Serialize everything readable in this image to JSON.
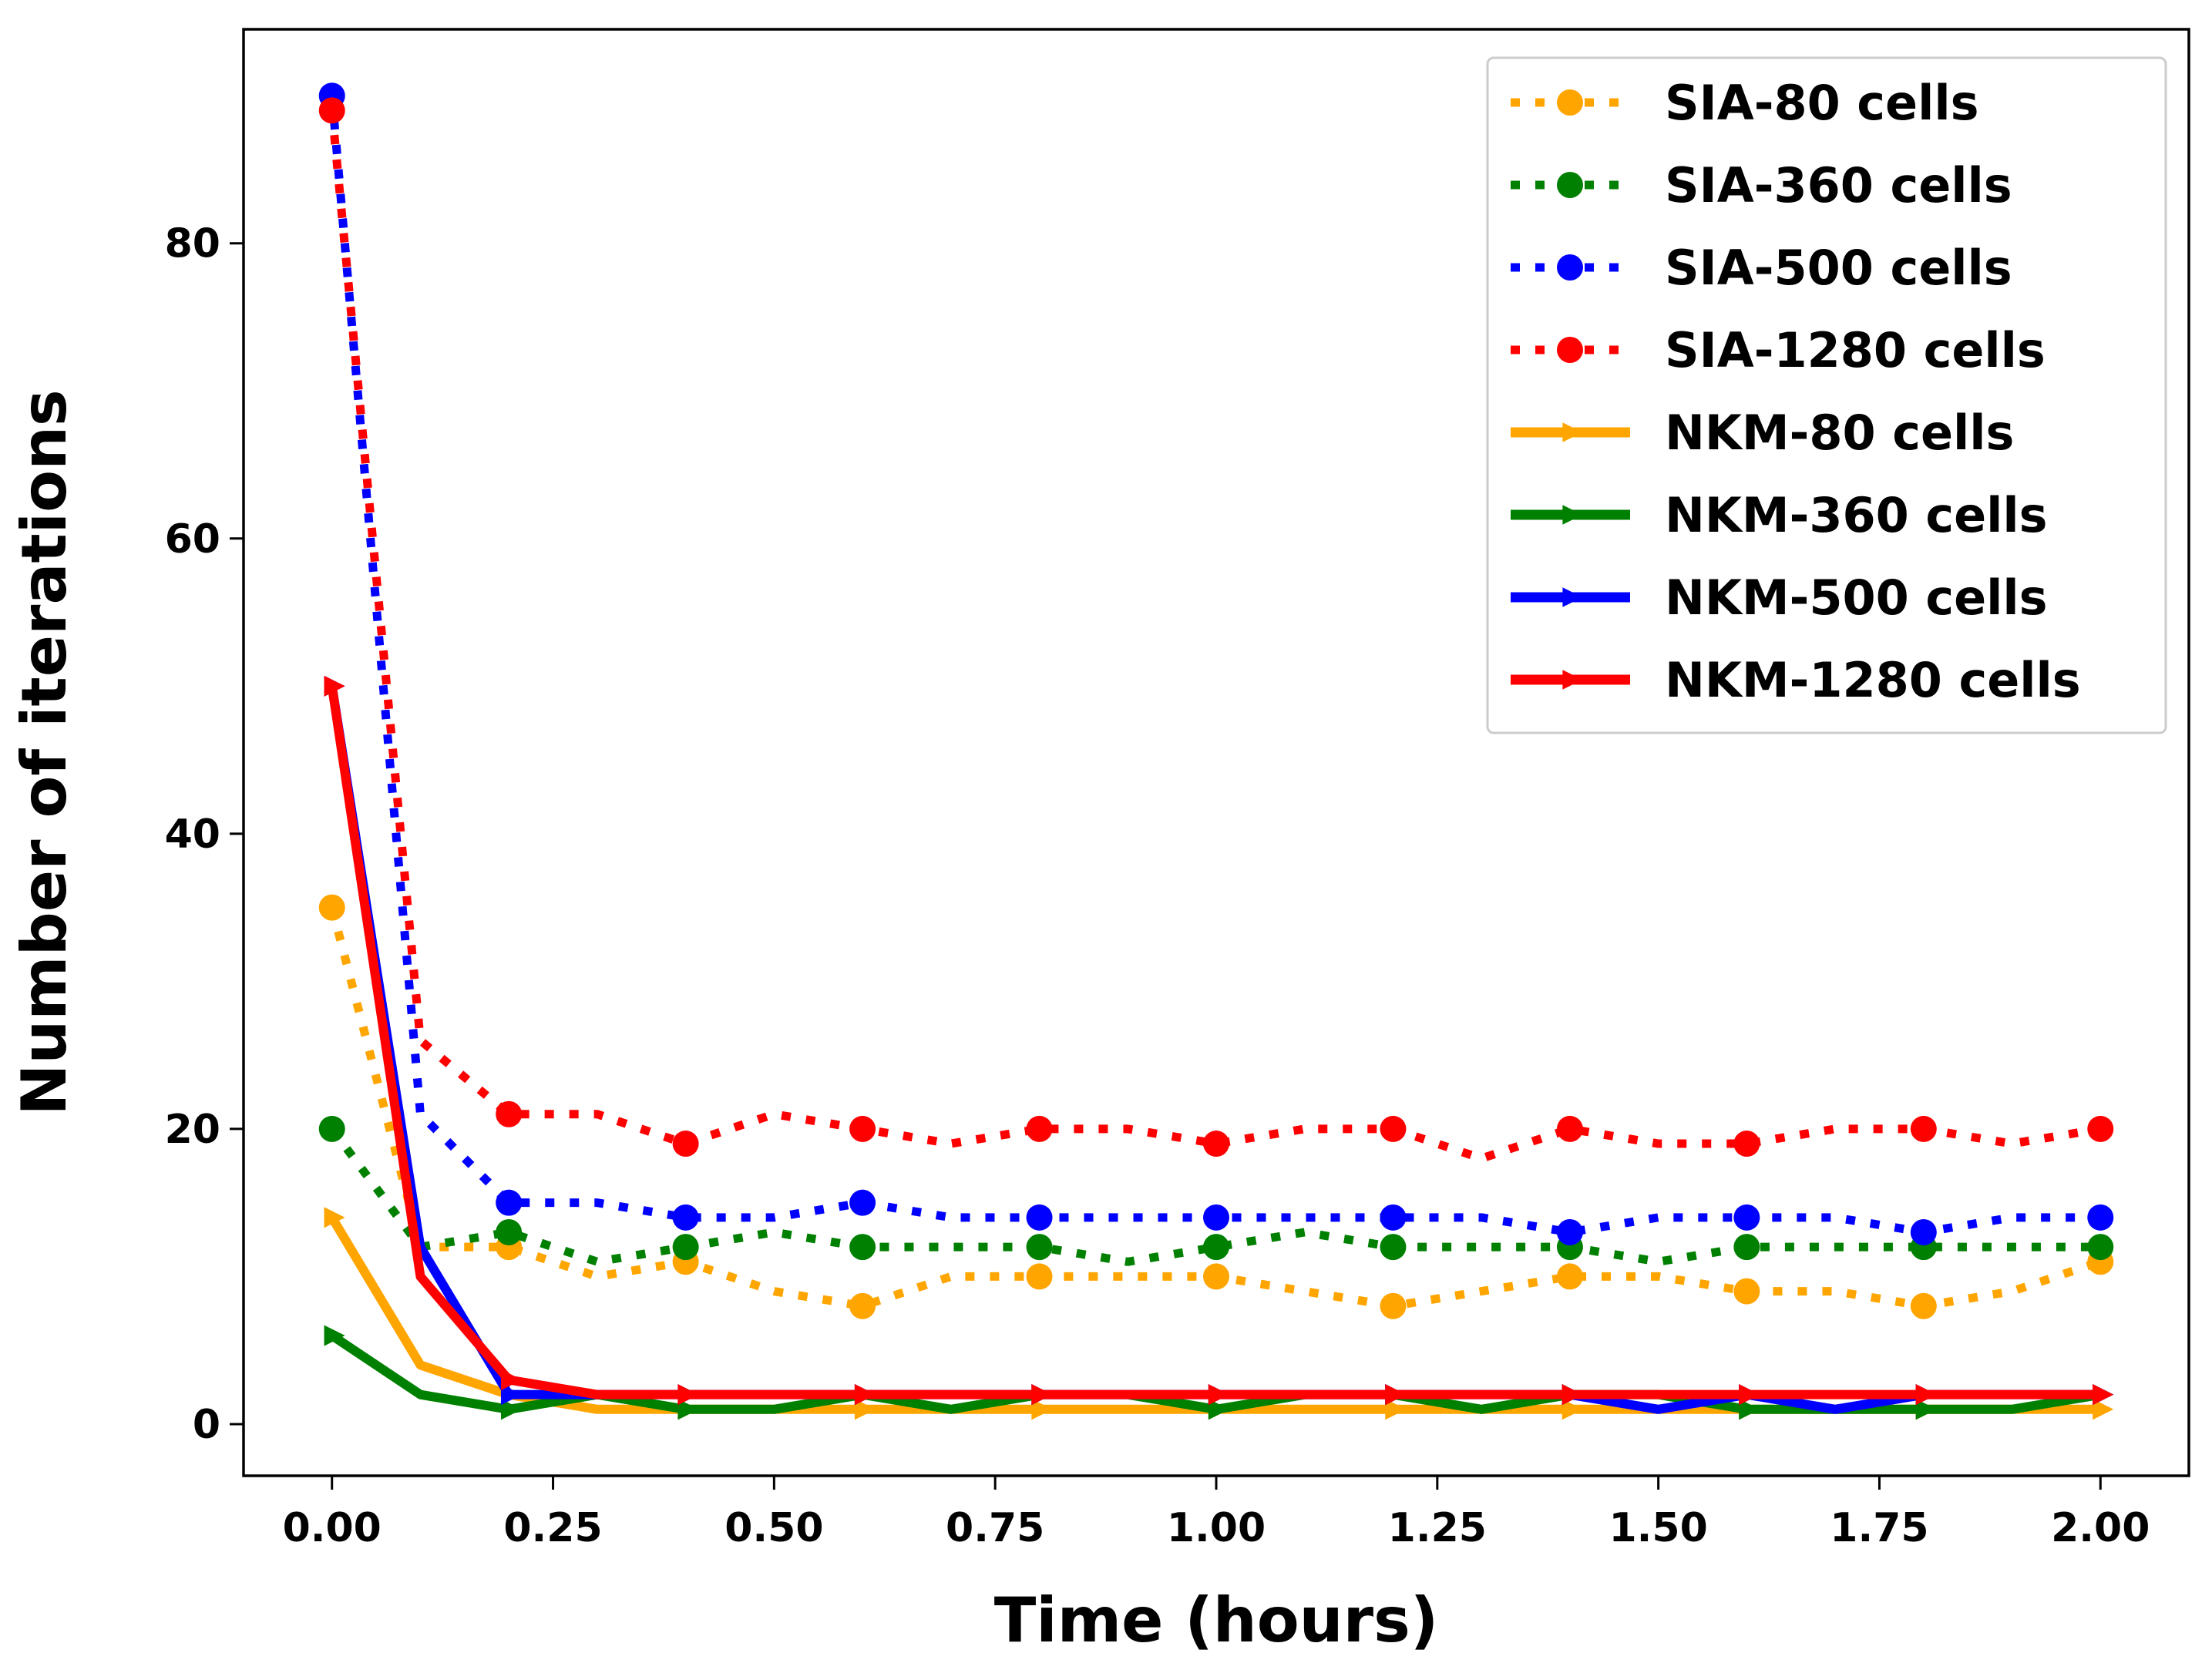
{
  "chart_data": {
    "type": "line",
    "title": "",
    "xlabel": "Time (hours)",
    "ylabel": "Number of iterations",
    "xlim": [
      -0.1,
      2.1
    ],
    "ylim": [
      -3.5,
      94.5
    ],
    "xticks": [
      0,
      0.25,
      0.5,
      0.75,
      1.0,
      1.25,
      1.5,
      1.75,
      2.0
    ],
    "xtick_labels": [
      "0.00",
      "0.25",
      "0.50",
      "0.75",
      "1.00",
      "1.25",
      "1.50",
      "1.75",
      "2.00"
    ],
    "yticks": [
      0,
      20,
      40,
      60,
      80
    ],
    "ytick_labels": [
      "0",
      "20",
      "40",
      "60",
      "80"
    ],
    "grid": false,
    "legend_position": "top-right",
    "x": [
      0.0,
      0.1,
      0.2,
      0.3,
      0.4,
      0.5,
      0.6,
      0.7,
      0.8,
      0.9,
      1.0,
      1.1,
      1.2,
      1.3,
      1.4,
      1.5,
      1.6,
      1.7,
      1.8,
      1.9,
      2.0
    ],
    "series": [
      {
        "name": "SIA-80 cells",
        "color": "#FFA500",
        "style": "dotted",
        "marker": "circle",
        "values": [
          35,
          12,
          12,
          10,
          11,
          9,
          8,
          10,
          10,
          10,
          10,
          9,
          8,
          9,
          10,
          10,
          9,
          9,
          8,
          9,
          11
        ]
      },
      {
        "name": "SIA-360 cells",
        "color": "#008000",
        "style": "dotted",
        "marker": "circle",
        "values": [
          20,
          12,
          13,
          11,
          12,
          13,
          12,
          12,
          12,
          11,
          12,
          13,
          12,
          12,
          12,
          11,
          12,
          12,
          12,
          12,
          12
        ]
      },
      {
        "name": "SIA-500 cells",
        "color": "#0000FF",
        "style": "dotted",
        "marker": "circle",
        "values": [
          90,
          21,
          15,
          15,
          14,
          14,
          15,
          14,
          14,
          14,
          14,
          14,
          14,
          14,
          13,
          14,
          14,
          14,
          13,
          14,
          14
        ]
      },
      {
        "name": "SIA-1280 cells",
        "color": "#FF0000",
        "style": "dotted",
        "marker": "circle",
        "values": [
          89,
          26,
          21,
          21,
          19,
          21,
          20,
          19,
          20,
          20,
          19,
          20,
          20,
          18,
          20,
          19,
          19,
          20,
          20,
          19,
          20
        ]
      },
      {
        "name": "NKM-80 cells",
        "color": "#FFA500",
        "style": "solid",
        "marker": "triangle",
        "values": [
          14,
          4,
          2,
          1,
          1,
          1,
          1,
          1,
          1,
          1,
          1,
          1,
          1,
          1,
          1,
          1,
          1,
          1,
          1,
          1,
          1
        ]
      },
      {
        "name": "NKM-360 cells",
        "color": "#008000",
        "style": "solid",
        "marker": "triangle",
        "values": [
          6,
          2,
          1,
          2,
          1,
          1,
          2,
          1,
          2,
          2,
          1,
          2,
          2,
          1,
          2,
          2,
          1,
          1,
          1,
          1,
          2
        ]
      },
      {
        "name": "NKM-500 cells",
        "color": "#0000FF",
        "style": "solid",
        "marker": "triangle",
        "values": [
          50,
          12,
          2,
          2,
          2,
          2,
          2,
          2,
          2,
          2,
          2,
          2,
          2,
          2,
          2,
          1,
          2,
          1,
          2,
          2,
          2
        ]
      },
      {
        "name": "NKM-1280 cells",
        "color": "#FF0000",
        "style": "solid",
        "marker": "triangle",
        "values": [
          50,
          10,
          3,
          2,
          2,
          2,
          2,
          2,
          2,
          2,
          2,
          2,
          2,
          2,
          2,
          2,
          2,
          2,
          2,
          2,
          2
        ]
      }
    ]
  }
}
